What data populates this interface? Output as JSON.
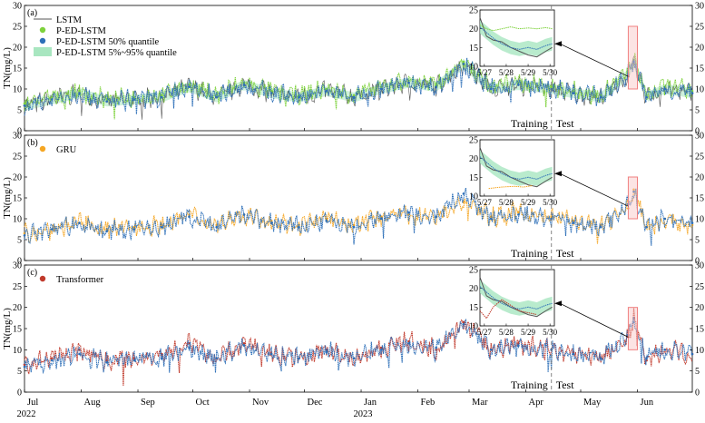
{
  "figure": {
    "x_month_labels": [
      "Jul",
      "Aug",
      "Sep",
      "Oct",
      "Nov",
      "Dec",
      "Jan",
      "Feb",
      "Mar",
      "Apr",
      "May",
      "Jun"
    ],
    "year_labels": [
      {
        "month_index": 0,
        "text": "2022"
      },
      {
        "month_index": 6,
        "text": "2023"
      }
    ],
    "split_labels": {
      "training": "Training",
      "test": "Test"
    },
    "colors": {
      "lstm": "#555555",
      "p_ed_lstm": "#7ed23c",
      "quantile50": "#2d6fb8",
      "band": "#a8e6c0",
      "gru": "#f5a623",
      "transformer": "#c0392b",
      "highlight_box": "#f08080"
    }
  },
  "chart_data": [
    {
      "panel": "(a)",
      "type": "line",
      "ylabel": "TN(mg/L)",
      "ylim": [
        0,
        30
      ],
      "yticks": [
        0,
        5,
        10,
        15,
        20,
        25,
        30
      ],
      "x_range_days": [
        0,
        365
      ],
      "split_day": 288,
      "highlight_window_days": [
        330,
        335
      ],
      "highlight_ylim": [
        10,
        25
      ],
      "legend": [
        "LSTM",
        "P-ED-LSTM",
        "P-ED-LSTM 50% quantile",
        "P-ED-LSTM  5%~95% quantile"
      ],
      "series": [
        {
          "name": "LSTM",
          "x": [
            0,
            15,
            30,
            45,
            60,
            75,
            90,
            105,
            120,
            135,
            150,
            165,
            180,
            195,
            210,
            225,
            240,
            255,
            270,
            288,
            300,
            315,
            330,
            333,
            340,
            350,
            365
          ],
          "values": [
            6,
            7.5,
            9,
            7,
            7.5,
            8,
            10.5,
            8,
            11,
            9,
            8,
            9.5,
            8,
            10,
            11.5,
            10.5,
            16,
            10,
            11,
            10,
            9,
            8,
            13,
            16,
            8,
            10,
            9
          ]
        },
        {
          "name": "P-ED-LSTM",
          "x": [
            0,
            15,
            30,
            45,
            60,
            75,
            90,
            105,
            120,
            135,
            150,
            165,
            180,
            195,
            210,
            225,
            240,
            255,
            270,
            288,
            300,
            315,
            330,
            333,
            340,
            350,
            365
          ],
          "values": [
            6.5,
            8,
            9.5,
            7.5,
            8,
            8.5,
            11,
            8.5,
            11.5,
            9.5,
            8.5,
            10,
            8.5,
            10.5,
            12,
            11,
            16.5,
            10.5,
            11.5,
            10.5,
            9.5,
            8.5,
            14,
            17,
            8.5,
            10.5,
            9.5
          ]
        },
        {
          "name": "P-ED-LSTM 50% quantile",
          "x": [
            0,
            15,
            30,
            45,
            60,
            75,
            90,
            105,
            120,
            135,
            150,
            165,
            180,
            195,
            210,
            225,
            240,
            255,
            270,
            288,
            300,
            315,
            330,
            333,
            340,
            350,
            365
          ],
          "values": [
            6,
            7.5,
            9,
            7,
            7.5,
            8,
            10.5,
            8,
            11,
            9,
            8,
            9.5,
            8,
            10,
            11.5,
            10.5,
            16,
            10,
            11,
            10,
            9,
            8,
            13.5,
            16.5,
            8,
            10,
            9
          ]
        }
      ],
      "inset": {
        "xticks": [
          "5/27",
          "5/28",
          "5/29",
          "5/30"
        ],
        "ylim": [
          10,
          25
        ],
        "yticks": [
          10,
          15,
          20,
          25
        ],
        "series": [
          {
            "name": "LSTM",
            "x": [
              0,
              0.3,
              0.6,
              1,
              1.4,
              1.8,
              2.2,
              2.6,
              3,
              3.3
            ],
            "values": [
              23,
              18,
              17,
              16.5,
              15,
              14,
              13,
              12.5,
              14,
              15
            ]
          },
          {
            "name": "P-ED-LSTM",
            "x": [
              0,
              0.3,
              0.6,
              1,
              1.4,
              1.8,
              2.2,
              2.6,
              3,
              3.3
            ],
            "values": [
              21,
              20,
              19.5,
              20,
              20.5,
              20,
              20.2,
              20,
              20.3,
              20
            ]
          },
          {
            "name": "P-ED-LSTM 50% quantile",
            "x": [
              0,
              0.3,
              0.6,
              1,
              1.4,
              1.8,
              2.2,
              2.6,
              3,
              3.3
            ],
            "values": [
              20.5,
              19,
              17.5,
              16,
              15,
              14.5,
              15,
              14.5,
              15.5,
              16
            ]
          }
        ]
      }
    },
    {
      "panel": "(b)",
      "type": "line",
      "ylabel": "TN(mg/L)",
      "ylim": [
        0,
        30
      ],
      "yticks": [
        0,
        5,
        10,
        15,
        20,
        25,
        30
      ],
      "x_range_days": [
        0,
        365
      ],
      "split_day": 288,
      "highlight_window_days": [
        330,
        335
      ],
      "highlight_ylim": [
        10,
        20
      ],
      "legend": [
        "GRU"
      ],
      "series": [
        {
          "name": "GRU",
          "x": [
            0,
            15,
            30,
            45,
            60,
            75,
            90,
            105,
            120,
            135,
            150,
            165,
            180,
            195,
            210,
            225,
            240,
            255,
            270,
            288,
            300,
            315,
            330,
            333,
            340,
            350,
            365
          ],
          "values": [
            6.5,
            7.5,
            9,
            7.5,
            8,
            8.5,
            11,
            8.5,
            11,
            9.5,
            8.5,
            10,
            8.5,
            10.5,
            11,
            10.5,
            14,
            10.5,
            11.5,
            10.5,
            9.5,
            8.5,
            12.5,
            17,
            8,
            10,
            8.5
          ]
        },
        {
          "name": "P-ED-LSTM 50% quantile",
          "x": [
            0,
            15,
            30,
            45,
            60,
            75,
            90,
            105,
            120,
            135,
            150,
            165,
            180,
            195,
            210,
            225,
            240,
            255,
            270,
            288,
            300,
            315,
            330,
            333,
            340,
            350,
            365
          ],
          "values": [
            6,
            7.5,
            9,
            7,
            7.5,
            8,
            10.5,
            8,
            11,
            9,
            8,
            9.5,
            8,
            10,
            11.5,
            10.5,
            16,
            10,
            11,
            10,
            9,
            8,
            13.5,
            16.5,
            8,
            10,
            9
          ]
        }
      ],
      "inset": {
        "xticks": [
          "5/27",
          "5/28",
          "5/29",
          "5/30"
        ],
        "ylim": [
          10,
          25
        ],
        "yticks": [
          10,
          15,
          20,
          25
        ],
        "series": [
          {
            "name": "LSTM",
            "x": [
              0,
              0.3,
              0.6,
              1,
              1.4,
              1.8,
              2.2,
              2.6,
              3,
              3.3
            ],
            "values": [
              23,
              18,
              17,
              16.5,
              15,
              14,
              13,
              12.5,
              14,
              15
            ]
          },
          {
            "name": "GRU",
            "x": [
              0.4,
              0.8,
              1.2,
              1.6,
              2,
              2.4
            ],
            "values": [
              12,
              12.3,
              12.5,
              12.6,
              12.4,
              12.8
            ]
          },
          {
            "name": "P-ED-LSTM 50% quantile",
            "x": [
              0,
              0.3,
              0.6,
              1,
              1.4,
              1.8,
              2.2,
              2.6,
              3,
              3.3
            ],
            "values": [
              20.5,
              19,
              17.5,
              16,
              15,
              14.5,
              15,
              14.5,
              15.5,
              16
            ]
          }
        ]
      }
    },
    {
      "panel": "(c)",
      "type": "line",
      "ylabel": "TN(mg/L)",
      "ylim": [
        0,
        30
      ],
      "yticks": [
        0,
        5,
        10,
        15,
        20,
        25,
        30
      ],
      "x_range_days": [
        0,
        365
      ],
      "split_day": 288,
      "highlight_window_days": [
        330,
        335
      ],
      "highlight_ylim": [
        10,
        20
      ],
      "legend": [
        "Transformer"
      ],
      "series": [
        {
          "name": "Transformer",
          "x": [
            0,
            15,
            30,
            45,
            60,
            75,
            90,
            105,
            120,
            135,
            150,
            165,
            180,
            195,
            210,
            225,
            240,
            255,
            270,
            288,
            300,
            315,
            330,
            333,
            340,
            350,
            365
          ],
          "values": [
            6.5,
            8,
            10,
            7.5,
            8,
            9,
            11.5,
            8,
            11.5,
            9,
            8,
            10,
            8,
            10.5,
            12,
            10,
            16.5,
            10,
            11.5,
            10,
            9.5,
            8,
            13,
            17.5,
            7.5,
            10,
            9
          ]
        },
        {
          "name": "P-ED-LSTM 50% quantile",
          "x": [
            0,
            15,
            30,
            45,
            60,
            75,
            90,
            105,
            120,
            135,
            150,
            165,
            180,
            195,
            210,
            225,
            240,
            255,
            270,
            288,
            300,
            315,
            330,
            333,
            340,
            350,
            365
          ],
          "values": [
            6,
            7.5,
            9,
            7,
            7.5,
            8,
            10.5,
            8,
            11,
            9,
            8,
            9.5,
            8,
            10,
            11.5,
            10.5,
            16,
            10,
            11,
            10,
            9,
            8,
            13.5,
            16.5,
            8,
            10,
            9
          ]
        }
      ],
      "inset": {
        "xticks": [
          "5/27",
          "5/28",
          "5/29",
          "5/30"
        ],
        "ylim": [
          10,
          25
        ],
        "yticks": [
          10,
          15,
          20,
          25
        ],
        "series": [
          {
            "name": "LSTM",
            "x": [
              0,
              0.3,
              0.6,
              1,
              1.4,
              1.8,
              2.2,
              2.6,
              3,
              3.3
            ],
            "values": [
              23,
              18,
              17,
              16.5,
              15,
              14,
              13,
              12.5,
              14,
              15
            ]
          },
          {
            "name": "Transformer",
            "x": [
              0,
              0.3,
              0.6,
              1,
              1.4,
              1.8,
              2.2,
              2.6
            ],
            "values": [
              14,
              12,
              15,
              17,
              15.5,
              14,
              13.5,
              13
            ]
          },
          {
            "name": "P-ED-LSTM 50% quantile",
            "x": [
              0,
              0.3,
              0.6,
              1,
              1.4,
              1.8,
              2.2,
              2.6,
              3,
              3.3
            ],
            "values": [
              20.5,
              19,
              17.5,
              16,
              15,
              14.5,
              15,
              14.5,
              15.5,
              16
            ]
          }
        ]
      }
    }
  ]
}
